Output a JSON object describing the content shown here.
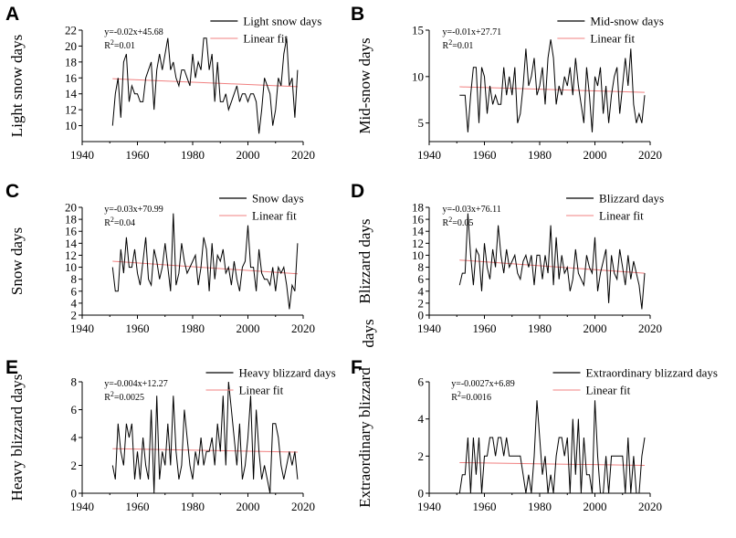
{
  "chart_data": [
    {
      "type": "line",
      "panel": "A",
      "ylabel": "Light snow days",
      "xlim": [
        1940,
        2020
      ],
      "xticks": [
        1940,
        1960,
        1980,
        2000,
        2020
      ],
      "ylim": [
        8,
        22
      ],
      "yticks": [
        10,
        12,
        14,
        16,
        18,
        20,
        22
      ],
      "equation": "y=-0.02x+45.68",
      "r2_label": "R",
      "r2_sup": "2",
      "r2_value": "=0.01",
      "legend": {
        "series": "Light snow days",
        "fit": "Linear fit"
      },
      "fit": {
        "x": [
          1951,
          2018
        ],
        "y": [
          15.9,
          14.9
        ]
      },
      "series": [
        {
          "name": "Light snow days",
          "x": [
            1951,
            1952,
            1953,
            1954,
            1955,
            1956,
            1957,
            1958,
            1959,
            1960,
            1961,
            1962,
            1963,
            1964,
            1965,
            1966,
            1967,
            1968,
            1969,
            1970,
            1971,
            1972,
            1973,
            1974,
            1975,
            1976,
            1977,
            1978,
            1979,
            1980,
            1981,
            1982,
            1983,
            1984,
            1985,
            1986,
            1987,
            1988,
            1989,
            1990,
            1991,
            1992,
            1993,
            1994,
            1995,
            1996,
            1997,
            1998,
            1999,
            2000,
            2001,
            2002,
            2003,
            2004,
            2005,
            2006,
            2007,
            2008,
            2009,
            2010,
            2011,
            2012,
            2013,
            2014,
            2015,
            2016,
            2017,
            2018
          ],
          "values": [
            10,
            14,
            16,
            11,
            18,
            19,
            13,
            15,
            14,
            14,
            13,
            13,
            16,
            17,
            18,
            12,
            17,
            19,
            17,
            19,
            21,
            17,
            18,
            16,
            15,
            17,
            17,
            16,
            15,
            19,
            16,
            18,
            17,
            21,
            21,
            17,
            19,
            13,
            18,
            13,
            13,
            14,
            12,
            13,
            14,
            15,
            13,
            14,
            14,
            13,
            14,
            14,
            13,
            9,
            12,
            16,
            15,
            14,
            10,
            12,
            16,
            15,
            19,
            21,
            15,
            16,
            11,
            17
          ]
        }
      ]
    },
    {
      "type": "line",
      "panel": "B",
      "ylabel": "Mid-snow days",
      "xlim": [
        1940,
        2020
      ],
      "xticks": [
        1940,
        1960,
        1980,
        2000,
        2020
      ],
      "ylim": [
        3,
        15
      ],
      "yticks": [
        5,
        10,
        15
      ],
      "equation": "y=-0.01x+27.71",
      "r2_label": "R",
      "r2_sup": "2",
      "r2_value": "=0.01",
      "legend": {
        "series": "Mid-snow days",
        "fit": "Linear fit"
      },
      "fit": {
        "x": [
          1951,
          2018
        ],
        "y": [
          8.9,
          8.3
        ]
      },
      "series": [
        {
          "name": "Mid-snow days",
          "x": [
            1951,
            1952,
            1953,
            1954,
            1955,
            1956,
            1957,
            1958,
            1959,
            1960,
            1961,
            1962,
            1963,
            1964,
            1965,
            1966,
            1967,
            1968,
            1969,
            1970,
            1971,
            1972,
            1973,
            1974,
            1975,
            1976,
            1977,
            1978,
            1979,
            1980,
            1981,
            1982,
            1983,
            1984,
            1985,
            1986,
            1987,
            1988,
            1989,
            1990,
            1991,
            1992,
            1993,
            1994,
            1995,
            1996,
            1997,
            1998,
            1999,
            2000,
            2001,
            2002,
            2003,
            2004,
            2005,
            2006,
            2007,
            2008,
            2009,
            2010,
            2011,
            2012,
            2013,
            2014,
            2015,
            2016,
            2017,
            2018
          ],
          "values": [
            8,
            8,
            8,
            4,
            8,
            11,
            11,
            5,
            11,
            10,
            6,
            9,
            7,
            8,
            7,
            7,
            11,
            8,
            10,
            8,
            11,
            5,
            6,
            9,
            13,
            9,
            10,
            12,
            8,
            9,
            11,
            7,
            12,
            14,
            12,
            7,
            9,
            8,
            10,
            9,
            11,
            8,
            12,
            9,
            7,
            5,
            11,
            8,
            4,
            10,
            9,
            11,
            6,
            9,
            5,
            8,
            10,
            11,
            6,
            9,
            12,
            9,
            13,
            7,
            5,
            6,
            5,
            8
          ]
        }
      ]
    },
    {
      "type": "line",
      "panel": "C",
      "ylabel": "Snow days",
      "xlim": [
        1940,
        2020
      ],
      "xticks": [
        1940,
        1960,
        1980,
        2000,
        2020
      ],
      "ylim": [
        2,
        20
      ],
      "yticks": [
        2,
        4,
        6,
        8,
        10,
        12,
        14,
        16,
        18,
        20
      ],
      "equation": "y=-0.03x+70.99",
      "r2_label": "R",
      "r2_sup": "2",
      "r2_value": "=0.04",
      "legend": {
        "series": "Snow days",
        "fit": "Linear fit"
      },
      "fit": {
        "x": [
          1951,
          2018
        ],
        "y": [
          11.0,
          8.9
        ]
      },
      "series": [
        {
          "name": "Snow days",
          "x": [
            1951,
            1952,
            1953,
            1954,
            1955,
            1956,
            1957,
            1958,
            1959,
            1960,
            1961,
            1962,
            1963,
            1964,
            1965,
            1966,
            1967,
            1968,
            1969,
            1970,
            1971,
            1972,
            1973,
            1974,
            1975,
            1976,
            1977,
            1978,
            1979,
            1980,
            1981,
            1982,
            1983,
            1984,
            1985,
            1986,
            1987,
            1988,
            1989,
            1990,
            1991,
            1992,
            1993,
            1994,
            1995,
            1996,
            1997,
            1998,
            1999,
            2000,
            2001,
            2002,
            2003,
            2004,
            2005,
            2006,
            2007,
            2008,
            2009,
            2010,
            2011,
            2012,
            2013,
            2014,
            2015,
            2016,
            2017,
            2018
          ],
          "values": [
            10,
            6,
            6,
            13,
            9,
            15,
            10,
            10,
            13,
            9,
            7,
            11,
            15,
            8,
            7,
            13,
            11,
            8,
            10,
            14,
            10,
            6,
            19,
            7,
            9,
            14,
            11,
            9,
            10,
            11,
            12,
            7,
            10,
            15,
            13,
            6,
            14,
            8,
            12,
            11,
            13,
            9,
            10,
            7,
            11,
            8,
            6,
            10,
            11,
            17,
            10,
            10,
            6,
            13,
            9,
            8,
            8,
            7,
            10,
            6,
            10,
            9,
            10,
            7,
            3,
            7,
            6,
            14
          ]
        }
      ]
    },
    {
      "type": "line",
      "panel": "D",
      "ylabel": "Blizzard days",
      "ylabel_extra": "days",
      "xlim": [
        1940,
        2020
      ],
      "xticks": [
        1940,
        1960,
        1980,
        2000,
        2020
      ],
      "ylim": [
        0,
        18
      ],
      "yticks": [
        0,
        2,
        4,
        6,
        8,
        10,
        12,
        14,
        16,
        18
      ],
      "equation": "y=-0.03x+76.11",
      "r2_label": "R",
      "r2_sup": "2",
      "r2_value": "=0.05",
      "legend": {
        "series": "Blizzard days",
        "fit": "Linear fit"
      },
      "fit": {
        "x": [
          1951,
          2018
        ],
        "y": [
          9.2,
          7.0
        ]
      },
      "series": [
        {
          "name": "Blizzard days",
          "x": [
            1951,
            1952,
            1953,
            1954,
            1955,
            1956,
            1957,
            1958,
            1959,
            1960,
            1961,
            1962,
            1963,
            1964,
            1965,
            1966,
            1967,
            1968,
            1969,
            1970,
            1971,
            1972,
            1973,
            1974,
            1975,
            1976,
            1977,
            1978,
            1979,
            1980,
            1981,
            1982,
            1983,
            1984,
            1985,
            1986,
            1987,
            1988,
            1989,
            1990,
            1991,
            1992,
            1993,
            1994,
            1995,
            1996,
            1997,
            1998,
            1999,
            2000,
            2001,
            2002,
            2003,
            2004,
            2005,
            2006,
            2007,
            2008,
            2009,
            2010,
            2011,
            2012,
            2013,
            2014,
            2015,
            2016,
            2017,
            2018
          ],
          "values": [
            5,
            7,
            7,
            17,
            10,
            5,
            11,
            10,
            4,
            12,
            8,
            6,
            11,
            8,
            15,
            10,
            7,
            11,
            8,
            9,
            10,
            7,
            6,
            9,
            10,
            8,
            10,
            5,
            10,
            10,
            6,
            10,
            7,
            15,
            5,
            13,
            6,
            10,
            7,
            8,
            4,
            6,
            11,
            7,
            6,
            5,
            10,
            8,
            7,
            13,
            4,
            7,
            9,
            11,
            2,
            10,
            7,
            6,
            11,
            8,
            5,
            10,
            6,
            9,
            7,
            5,
            1,
            7
          ]
        }
      ]
    },
    {
      "type": "line",
      "panel": "E",
      "ylabel": "Heavy blizzard days",
      "xlim": [
        1940,
        2020
      ],
      "xticks": [
        1940,
        1960,
        1980,
        2000,
        2020
      ],
      "ylim": [
        0,
        8
      ],
      "yticks": [
        0,
        2,
        4,
        6,
        8
      ],
      "equation": "y=-0.004x+12.27",
      "r2_label": "R",
      "r2_sup": "2",
      "r2_value": "=0.0025",
      "legend": {
        "series": "Heavy blizzard days",
        "fit": "Linear fit"
      },
      "fit": {
        "x": [
          1951,
          2018
        ],
        "y": [
          3.2,
          2.95
        ]
      },
      "series": [
        {
          "name": "Heavy blizzard days",
          "x": [
            1951,
            1952,
            1953,
            1954,
            1955,
            1956,
            1957,
            1958,
            1959,
            1960,
            1961,
            1962,
            1963,
            1964,
            1965,
            1966,
            1967,
            1968,
            1969,
            1970,
            1971,
            1972,
            1973,
            1974,
            1975,
            1976,
            1977,
            1978,
            1979,
            1980,
            1981,
            1982,
            1983,
            1984,
            1985,
            1986,
            1987,
            1988,
            1989,
            1990,
            1991,
            1992,
            1993,
            1994,
            1995,
            1996,
            1997,
            1998,
            1999,
            2000,
            2001,
            2002,
            2003,
            2004,
            2005,
            2006,
            2007,
            2008,
            2009,
            2010,
            2011,
            2012,
            2013,
            2014,
            2015,
            2016,
            2017,
            2018
          ],
          "values": [
            2,
            1,
            5,
            3,
            2,
            5,
            4,
            5,
            1,
            3,
            1,
            4,
            2,
            1,
            6,
            0,
            7,
            1,
            3,
            2,
            5,
            2,
            7,
            3,
            1,
            2,
            6,
            4,
            2,
            1,
            3,
            2,
            4,
            2,
            3,
            3,
            4,
            2,
            5,
            3,
            7,
            2,
            8,
            6,
            4,
            2,
            5,
            1,
            2,
            4,
            7,
            1,
            6,
            3,
            1,
            2,
            1,
            0,
            5,
            5,
            4,
            2,
            1,
            2,
            3,
            2,
            3,
            1
          ]
        }
      ]
    },
    {
      "type": "line",
      "panel": "F",
      "ylabel": "Extraordinary blizzard",
      "xlim": [
        1940,
        2020
      ],
      "xticks": [
        1940,
        1960,
        1980,
        2000,
        2020
      ],
      "ylim": [
        0,
        6
      ],
      "yticks": [
        0,
        2,
        4,
        6
      ],
      "equation": "y=-0.0027x+6.89",
      "r2_label": "R",
      "r2_sup": "2",
      "r2_value": "=0.0016",
      "legend": {
        "series": "Extraordinary blizzard days",
        "fit": "Linear fit"
      },
      "fit": {
        "x": [
          1951,
          2018
        ],
        "y": [
          1.65,
          1.5
        ]
      },
      "series": [
        {
          "name": "Extraordinary blizzard days",
          "x": [
            1951,
            1952,
            1953,
            1954,
            1955,
            1956,
            1957,
            1958,
            1959,
            1960,
            1961,
            1962,
            1963,
            1964,
            1965,
            1966,
            1967,
            1968,
            1969,
            1970,
            1971,
            1972,
            1973,
            1974,
            1975,
            1976,
            1977,
            1978,
            1979,
            1980,
            1981,
            1982,
            1983,
            1984,
            1985,
            1986,
            1987,
            1988,
            1989,
            1990,
            1991,
            1992,
            1993,
            1994,
            1995,
            1996,
            1997,
            1998,
            1999,
            2000,
            2001,
            2002,
            2003,
            2004,
            2005,
            2006,
            2007,
            2008,
            2009,
            2010,
            2011,
            2012,
            2013,
            2014,
            2015,
            2016,
            2017,
            2018
          ],
          "values": [
            0,
            1,
            1,
            3,
            0,
            3,
            1,
            3,
            0,
            2,
            2,
            3,
            3,
            2,
            3,
            3,
            2,
            3,
            2,
            2,
            2,
            2,
            2,
            1,
            0,
            1,
            0,
            2,
            5,
            3,
            1,
            2,
            0,
            1,
            0,
            2,
            3,
            3,
            2,
            3,
            0,
            4,
            1,
            4,
            0,
            3,
            1,
            1,
            0,
            5,
            2,
            0,
            0,
            2,
            0,
            2,
            2,
            2,
            2,
            2,
            0,
            3,
            0,
            2,
            0,
            0,
            2,
            3
          ]
        }
      ]
    }
  ]
}
